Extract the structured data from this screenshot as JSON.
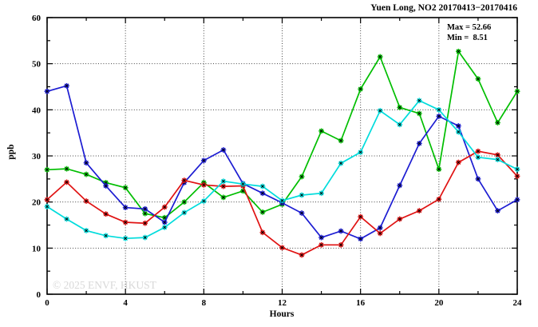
{
  "chart_data": {
    "type": "line",
    "title": "Yuen Long, NO2 20170413−20170416",
    "xlabel": "Hours",
    "ylabel": "ppb",
    "xlim": [
      0,
      24
    ],
    "ylim": [
      0,
      60
    ],
    "x_major_ticks": [
      0,
      4,
      8,
      12,
      16,
      20,
      24
    ],
    "x_minor_ticks": [
      2,
      6,
      10,
      14,
      18,
      22
    ],
    "y_major_ticks": [
      0,
      10,
      20,
      30,
      40,
      50,
      60
    ],
    "y_minor_ticks": [
      5,
      15,
      25,
      35,
      45,
      55
    ],
    "grid_x": [
      4,
      8,
      12,
      16,
      20
    ],
    "grid_y": [
      10,
      20,
      30,
      40,
      50
    ],
    "grid_style": "dotted",
    "legend_position": "none",
    "max_value": 52.66,
    "min_value": 8.51,
    "annotations": {
      "max_label": "Max = 52.66",
      "min_label": "Min =  8.51"
    },
    "watermark": "© 2025 ENVF, HKUST",
    "x": [
      0,
      1,
      2,
      3,
      4,
      5,
      6,
      7,
      8,
      9,
      10,
      11,
      12,
      13,
      14,
      15,
      16,
      17,
      18,
      19,
      20,
      21,
      22,
      23,
      24
    ],
    "series": [
      {
        "name": "green",
        "color": "#00BE00",
        "values": [
          27,
          27.2,
          26,
          24.2,
          23.1,
          17.5,
          16.6,
          20,
          24.2,
          21,
          22.4,
          17.8,
          19.5,
          25.5,
          35.4,
          33.3,
          44.5,
          51.5,
          40.5,
          39.2,
          27.1,
          52.66,
          46.7,
          37.2,
          44
        ]
      },
      {
        "name": "blue",
        "color": "#1C1CD2",
        "values": [
          44,
          45.2,
          28.5,
          23.5,
          18.8,
          18.5,
          15.6,
          24.2,
          29,
          31.3,
          24,
          21.9,
          19.8,
          17.6,
          12.3,
          13.7,
          12,
          14.4,
          23.6,
          32.7,
          38.6,
          36.5,
          25,
          18.1,
          20.5
        ]
      },
      {
        "name": "red",
        "color": "#E01212",
        "values": [
          20.5,
          24.3,
          20.2,
          17.4,
          15.6,
          15.4,
          18.9,
          24.7,
          23.7,
          23.4,
          23.5,
          13.4,
          10.1,
          8.51,
          10.7,
          10.7,
          16.8,
          13.2,
          16.3,
          18.1,
          20.6,
          28.6,
          31,
          30.2,
          25.6
        ]
      },
      {
        "name": "cyan",
        "color": "#00DCDC",
        "values": [
          19,
          16.3,
          13.8,
          12.7,
          12.1,
          12.3,
          14.5,
          17.7,
          20.2,
          24.5,
          23.9,
          23.4,
          20.3,
          21.5,
          21.9,
          28.4,
          30.8,
          39.8,
          36.8,
          42,
          40,
          35.2,
          29.7,
          29.2,
          27.1
        ]
      }
    ]
  }
}
